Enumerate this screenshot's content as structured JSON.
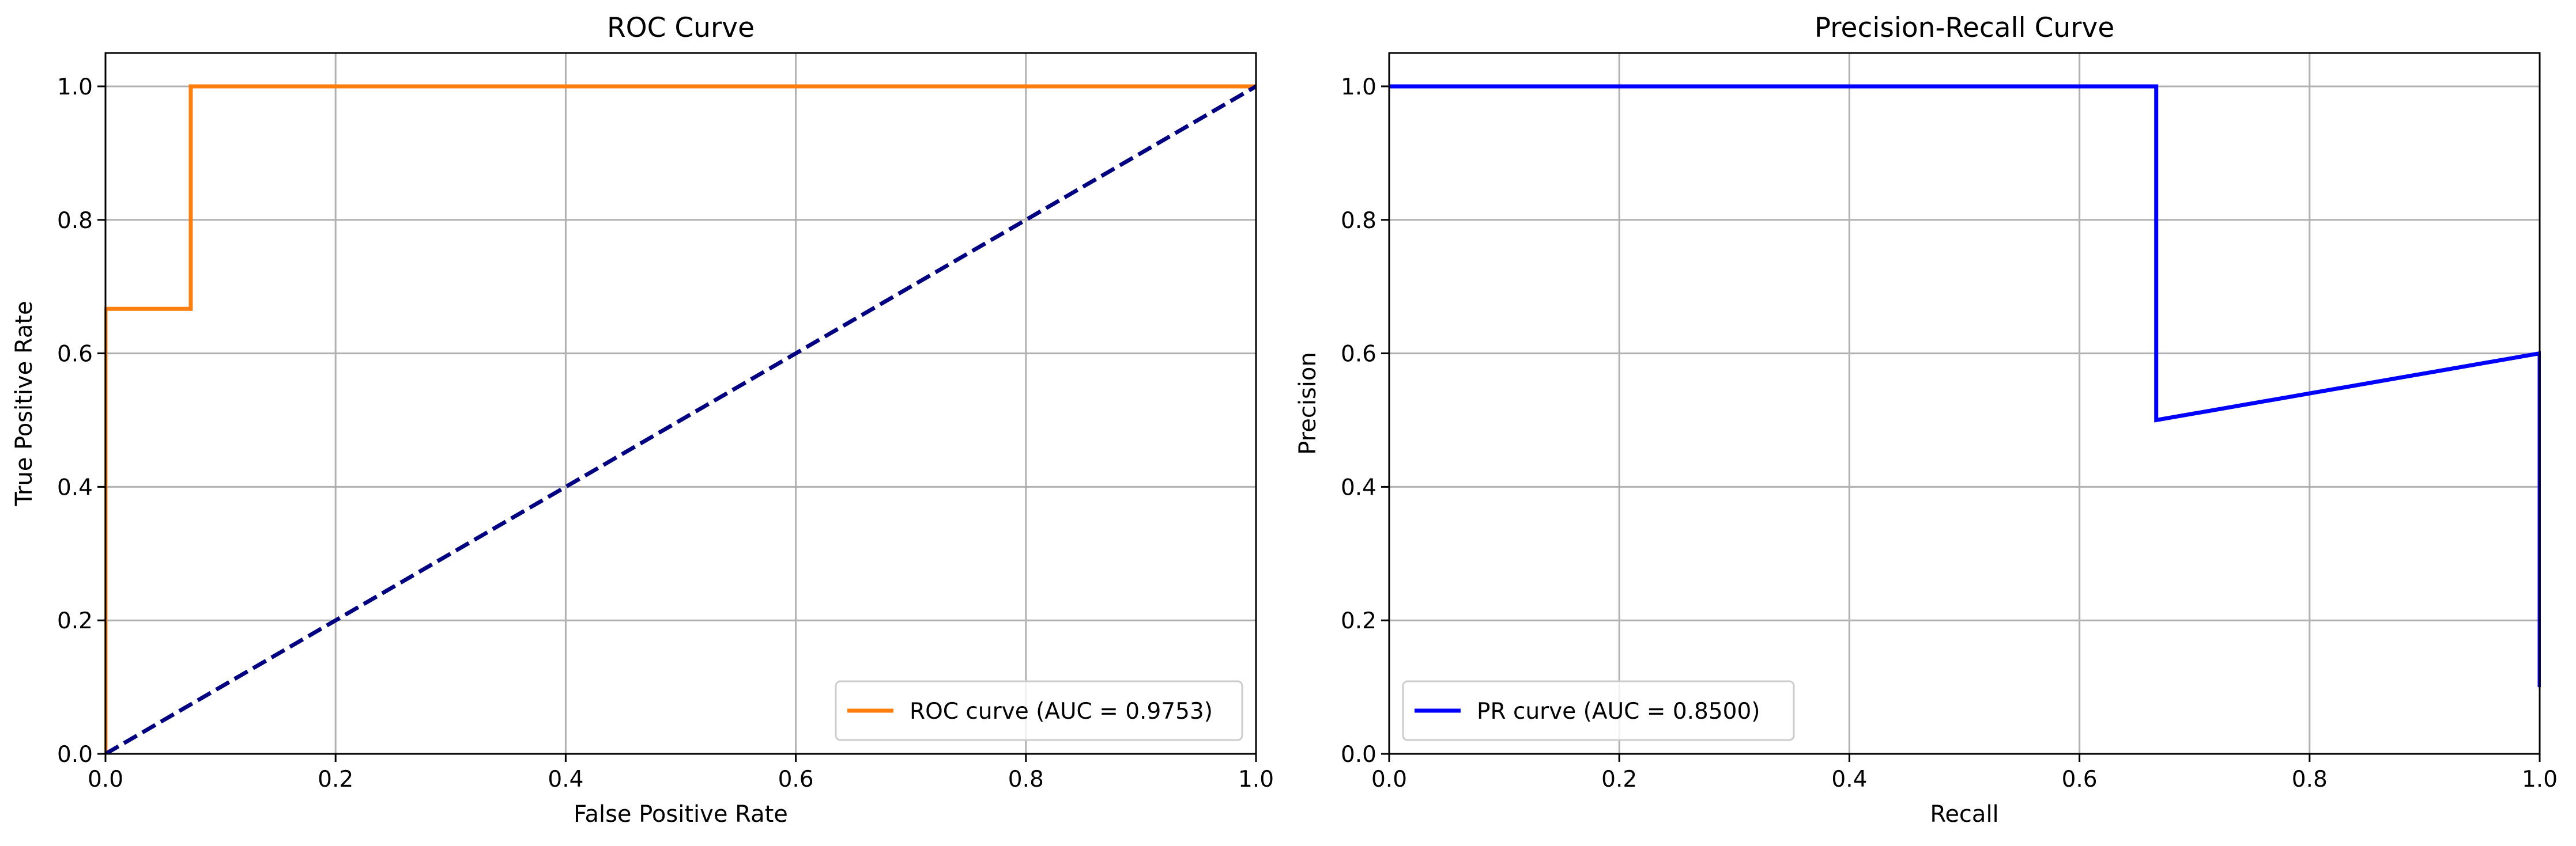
{
  "chart_data": [
    {
      "type": "line",
      "title": "ROC Curve",
      "xlabel": "False Positive Rate",
      "ylabel": "True Positive Rate",
      "xlim": [
        0.0,
        1.0
      ],
      "ylim": [
        0.0,
        1.05
      ],
      "xticks": [
        0.0,
        0.2,
        0.4,
        0.6,
        0.8,
        1.0
      ],
      "yticks": [
        0.0,
        0.2,
        0.4,
        0.6,
        0.8,
        1.0
      ],
      "xtick_labels": [
        "0.0",
        "0.2",
        "0.4",
        "0.6",
        "0.8",
        "1.0"
      ],
      "ytick_labels": [
        "0.0",
        "0.2",
        "0.4",
        "0.6",
        "0.8",
        "1.0"
      ],
      "grid": true,
      "legend_position": "lower right",
      "series": [
        {
          "name": "ROC curve (AUC = 0.9753)",
          "color": "#ff7f0e",
          "style": "solid",
          "in_legend": true,
          "x": [
            0.0,
            0.0,
            0.0741,
            0.0741,
            1.0
          ],
          "y": [
            0.0,
            0.6667,
            0.6667,
            1.0,
            1.0
          ]
        },
        {
          "color": "#000080",
          "style": "dashed",
          "in_legend": false,
          "x": [
            0.0,
            1.0
          ],
          "y": [
            0.0,
            1.0
          ]
        }
      ]
    },
    {
      "type": "line",
      "title": "Precision-Recall Curve",
      "xlabel": "Recall",
      "ylabel": "Precision",
      "xlim": [
        0.0,
        1.0
      ],
      "ylim": [
        0.0,
        1.05
      ],
      "xticks": [
        0.0,
        0.2,
        0.4,
        0.6,
        0.8,
        1.0
      ],
      "yticks": [
        0.0,
        0.2,
        0.4,
        0.6,
        0.8,
        1.0
      ],
      "xtick_labels": [
        "0.0",
        "0.2",
        "0.4",
        "0.6",
        "0.8",
        "1.0"
      ],
      "ytick_labels": [
        "0.0",
        "0.2",
        "0.4",
        "0.6",
        "0.8",
        "1.0"
      ],
      "grid": true,
      "legend_position": "lower left",
      "series": [
        {
          "name": "PR curve (AUC = 0.8500)",
          "color": "#0000ff",
          "style": "solid",
          "in_legend": true,
          "x": [
            0.0,
            0.6667,
            0.6667,
            1.0,
            1.0
          ],
          "y": [
            1.0,
            1.0,
            0.5,
            0.6,
            0.1
          ]
        }
      ]
    }
  ]
}
